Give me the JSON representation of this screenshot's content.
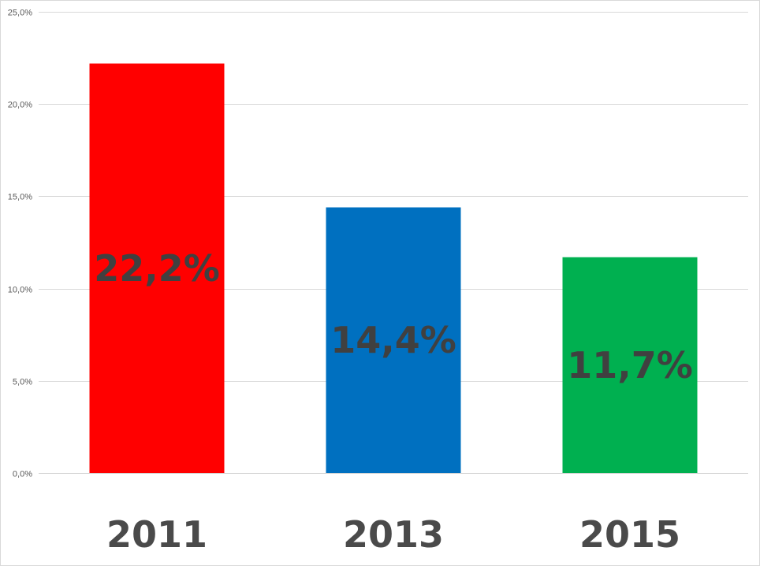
{
  "chart_data": {
    "type": "bar",
    "categories": [
      "2011",
      "2013",
      "2015"
    ],
    "values": [
      22.2,
      14.4,
      11.7
    ],
    "data_labels": [
      "22,2%",
      "14,4%",
      "11,7%"
    ],
    "bar_colors": [
      "#ff0000",
      "#0070c0",
      "#00b050"
    ],
    "ylim": [
      0,
      25
    ],
    "y_ticks": [
      0,
      5,
      10,
      15,
      20,
      25
    ],
    "y_tick_labels": [
      "0,0%",
      "5,0%",
      "10,0%",
      "15,0%",
      "20,0%",
      "25,0%"
    ],
    "title": "",
    "xlabel": "",
    "ylabel": "",
    "grid": true,
    "legend": "none"
  }
}
